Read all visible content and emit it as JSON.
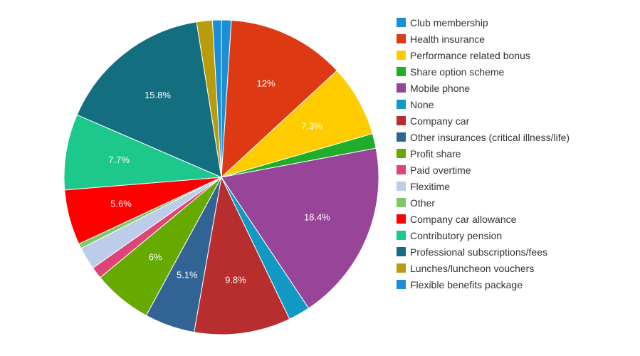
{
  "chart_data": {
    "type": "pie",
    "start": "top",
    "direction": "clockwise",
    "legend_position": "right",
    "series": [
      {
        "name": "Flexible benefits package",
        "value": 1.0,
        "label": "",
        "color": "#1a8fd6"
      },
      {
        "name": "Health insurance",
        "value": 12.0,
        "label": "12%",
        "color": "#dd3a14"
      },
      {
        "name": "Performance related bonus",
        "value": 7.3,
        "label": "7.3%",
        "color": "#ffcc00"
      },
      {
        "name": "Share option scheme",
        "value": 1.5,
        "label": "",
        "color": "#1fad2a"
      },
      {
        "name": "Mobile phone",
        "value": 18.4,
        "label": "18.4%",
        "color": "#984499"
      },
      {
        "name": "None",
        "value": 2.2,
        "label": "",
        "color": "#1199c4"
      },
      {
        "name": "Company car",
        "value": 9.8,
        "label": "9.8%",
        "color": "#b82d2d"
      },
      {
        "name": "Other insurances (critical illness/life)",
        "value": 5.1,
        "label": "5.1%",
        "color": "#316395"
      },
      {
        "name": "Profit share",
        "value": 6.0,
        "label": "6%",
        "color": "#66aa00"
      },
      {
        "name": "Paid overtime",
        "value": 1.2,
        "label": "",
        "color": "#dd4477"
      },
      {
        "name": "Flexitime",
        "value": 2.3,
        "label": "",
        "color": "#bbcde8"
      },
      {
        "name": "Other",
        "value": 0.5,
        "label": "",
        "color": "#7ec864"
      },
      {
        "name": "Company car allowance",
        "value": 5.6,
        "label": "5.6%",
        "color": "#ff0000"
      },
      {
        "name": "Contributory pension",
        "value": 7.7,
        "label": "7.7%",
        "color": "#1dc88c"
      },
      {
        "name": "Professional subscriptions/fees",
        "value": 15.8,
        "label": "15.8%",
        "color": "#136e80"
      },
      {
        "name": "Lunches/luncheon vouchers",
        "value": 1.6,
        "label": "",
        "color": "#b89c0c"
      },
      {
        "name": "Club membership",
        "value": 0.9,
        "label": "",
        "color": "#1a8fd6"
      }
    ],
    "legend": [
      {
        "name": "Club membership",
        "color": "#1a8fd6"
      },
      {
        "name": "Health insurance",
        "color": "#dd3a14"
      },
      {
        "name": "Performance related bonus",
        "color": "#ffcc00"
      },
      {
        "name": "Share option scheme",
        "color": "#1fad2a"
      },
      {
        "name": "Mobile phone",
        "color": "#984499"
      },
      {
        "name": "None",
        "color": "#1199c4"
      },
      {
        "name": "Company car",
        "color": "#b82d2d"
      },
      {
        "name": "Other insurances (critical illness/life)",
        "color": "#316395"
      },
      {
        "name": "Profit share",
        "color": "#66aa00"
      },
      {
        "name": "Paid overtime",
        "color": "#dd4477"
      },
      {
        "name": "Flexitime",
        "color": "#bbcde8"
      },
      {
        "name": "Other",
        "color": "#7ec864"
      },
      {
        "name": "Company car allowance",
        "color": "#ff0000"
      },
      {
        "name": "Contributory pension",
        "color": "#1dc88c"
      },
      {
        "name": "Professional subscriptions/fees",
        "color": "#136e80"
      },
      {
        "name": "Lunches/luncheon vouchers",
        "color": "#b89c0c"
      },
      {
        "name": "Flexible benefits package",
        "color": "#1a8fd6"
      }
    ]
  }
}
